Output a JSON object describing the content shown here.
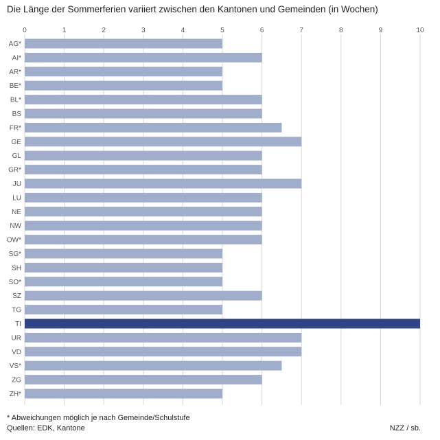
{
  "title": "Die Länge der Sommerferien variiert zwischen den Kantonen und Gemeinden (in Wochen)",
  "footnote": "* Abweichungen möglich je nach Gemeinde/Schulstufe",
  "sources": "Quellen: EDK, Kantone",
  "credit": "NZZ / sb.",
  "colors": {
    "bar": "#a1aecb",
    "highlight": "#2f4587",
    "grid": "#d8d8d8"
  },
  "chart_data": {
    "type": "bar",
    "orientation": "horizontal",
    "title": "Die Länge der Sommerferien variiert zwischen den Kantonen und Gemeinden (in Wochen)",
    "xlim": [
      0,
      10
    ],
    "x_ticks": [
      "0",
      "1",
      "2",
      "3",
      "4",
      "5",
      "6",
      "7",
      "8",
      "9",
      "10"
    ],
    "grid": true,
    "highlight": "TI",
    "categories": [
      "AG*",
      "AI*",
      "AR*",
      "BE*",
      "BL*",
      "BS",
      "FR*",
      "GE",
      "GL",
      "GR*",
      "JU",
      "LU",
      "NE",
      "NW",
      "OW*",
      "SG*",
      "SH",
      "SO*",
      "SZ",
      "TG",
      "TI",
      "UR",
      "VD",
      "VS*",
      "ZG",
      "ZH*"
    ],
    "values": [
      5,
      6,
      5,
      5,
      6,
      6,
      6.5,
      7,
      6,
      6,
      7,
      6,
      6,
      6,
      6,
      5,
      5,
      5,
      6,
      5,
      10,
      7,
      7,
      6.5,
      6,
      5
    ]
  }
}
